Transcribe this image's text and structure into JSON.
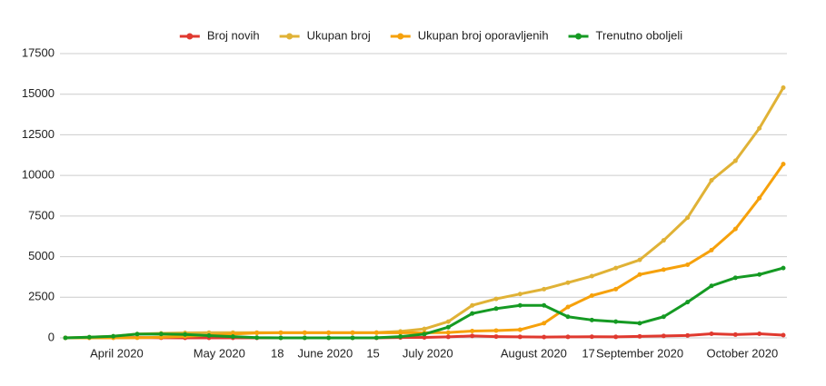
{
  "chart_data": {
    "type": "line",
    "x": [
      "2020-03-17",
      "2020-03-24",
      "2020-03-31",
      "2020-04-07",
      "2020-04-14",
      "2020-04-21",
      "2020-04-28",
      "2020-05-05",
      "2020-05-12",
      "2020-05-19",
      "2020-05-26",
      "2020-06-02",
      "2020-06-09",
      "2020-06-16",
      "2020-06-23",
      "2020-06-30",
      "2020-07-07",
      "2020-07-14",
      "2020-07-21",
      "2020-07-28",
      "2020-08-04",
      "2020-08-11",
      "2020-08-18",
      "2020-08-25",
      "2020-09-01",
      "2020-09-08",
      "2020-09-15",
      "2020-09-22",
      "2020-09-29",
      "2020-10-06",
      "2020-10-13"
    ],
    "series": [
      {
        "name": "Broj novih",
        "color": "#e0392f",
        "values": [
          2,
          10,
          15,
          20,
          5,
          3,
          2,
          1,
          0,
          0,
          0,
          0,
          0,
          2,
          20,
          30,
          60,
          120,
          80,
          60,
          50,
          60,
          70,
          60,
          90,
          120,
          150,
          250,
          200,
          250,
          170
        ]
      },
      {
        "name": "Ukupan broj",
        "color": "#e0b236",
        "values": [
          2,
          40,
          100,
          240,
          280,
          310,
          320,
          324,
          324,
          324,
          324,
          324,
          324,
          330,
          400,
          550,
          1000,
          2000,
          2400,
          2700,
          3000,
          3400,
          3800,
          4300,
          4800,
          6000,
          7400,
          9700,
          10900,
          12900,
          15400
        ]
      },
      {
        "name": "Ukupan broj oporavljenih",
        "color": "#f6a10b",
        "values": [
          0,
          0,
          0,
          10,
          40,
          90,
          170,
          240,
          300,
          315,
          315,
          315,
          315,
          315,
          315,
          315,
          330,
          420,
          450,
          500,
          900,
          1900,
          2600,
          3000,
          3900,
          4200,
          4500,
          5400,
          6700,
          8600,
          10700
        ]
      },
      {
        "name": "Trenutno oboljeli",
        "color": "#159a23",
        "values": [
          2,
          40,
          100,
          230,
          240,
          210,
          140,
          75,
          15,
          2,
          0,
          0,
          0,
          6,
          80,
          230,
          660,
          1500,
          1800,
          2000,
          2000,
          1300,
          1100,
          1000,
          900,
          1300,
          2200,
          3200,
          3700,
          3900,
          4300
        ]
      }
    ],
    "xlim": [
      "2020-03-17",
      "2020-10-13"
    ],
    "xticks": [
      {
        "value": "2020-04-01",
        "label": "April 2020"
      },
      {
        "value": "2020-05-01",
        "label": "May 2020"
      },
      {
        "value": "2020-05-18",
        "label": "18"
      },
      {
        "value": "2020-06-01",
        "label": "June 2020"
      },
      {
        "value": "2020-06-15",
        "label": "15"
      },
      {
        "value": "2020-07-01",
        "label": "July 2020"
      },
      {
        "value": "2020-08-01",
        "label": "August 2020"
      },
      {
        "value": "2020-08-17",
        "label": "17"
      },
      {
        "value": "2020-09-01",
        "label": "September 2020"
      },
      {
        "value": "2020-10-01",
        "label": "October 2020"
      }
    ],
    "ylim": [
      0,
      17500
    ],
    "yticks": [
      0,
      2500,
      5000,
      7500,
      10000,
      12500,
      15000,
      17500
    ],
    "grid": true,
    "legend": "top"
  }
}
